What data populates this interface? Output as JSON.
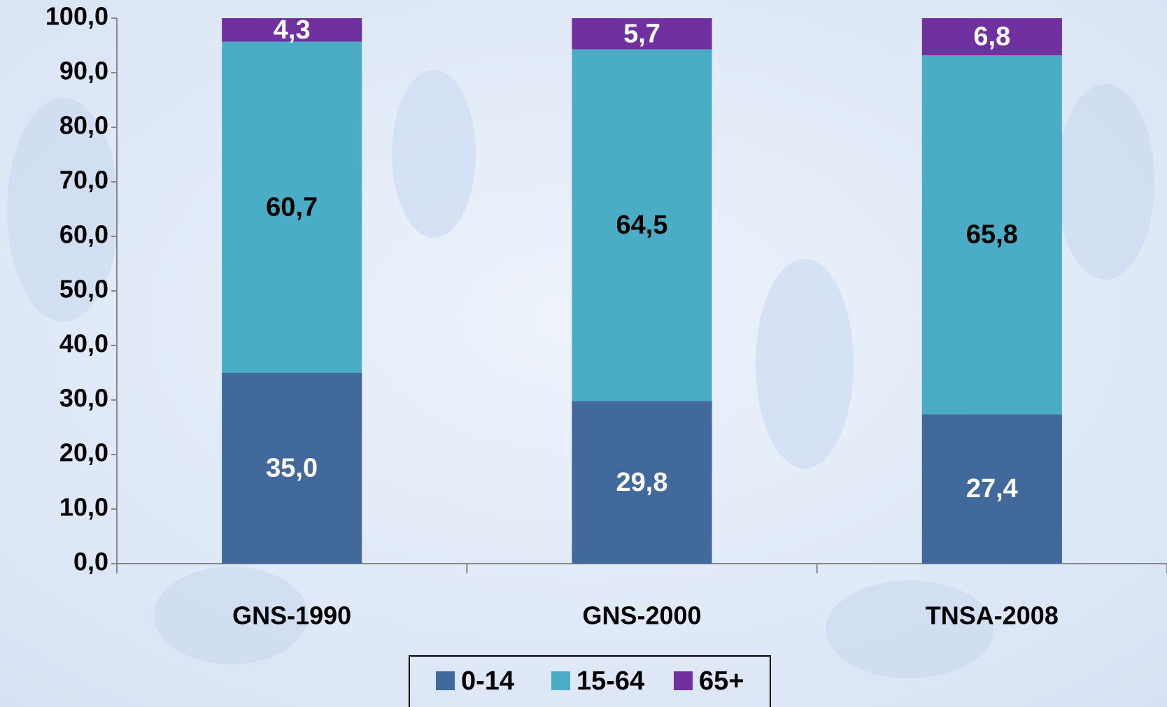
{
  "chart_data": {
    "type": "stacked_bar",
    "categories": [
      "GNS-1990",
      "GNS-2000",
      "TNSA-2008"
    ],
    "series": [
      {
        "name": "0-14",
        "color": "#41699c",
        "values": [
          35.0,
          29.8,
          27.4
        ],
        "value_labels": [
          "35,0",
          "29,8",
          "27,4"
        ]
      },
      {
        "name": "15-64",
        "color": "#4bacc6",
        "values": [
          60.7,
          64.5,
          65.8
        ],
        "value_labels": [
          "60,7",
          "64,5",
          "65,8"
        ]
      },
      {
        "name": "65+",
        "color": "#7030a0",
        "values": [
          4.3,
          5.7,
          6.8
        ],
        "value_labels": [
          "4,3",
          "5,7",
          "6,8"
        ]
      }
    ],
    "ylim": [
      0,
      100
    ],
    "yticks": [
      {
        "value": 0,
        "label": "0,0"
      },
      {
        "value": 10,
        "label": "10,0"
      },
      {
        "value": 20,
        "label": "20,0"
      },
      {
        "value": 30,
        "label": "30,0"
      },
      {
        "value": 40,
        "label": "40,0"
      },
      {
        "value": 50,
        "label": "50,0"
      },
      {
        "value": 60,
        "label": "60,0"
      },
      {
        "value": 70,
        "label": "70,0"
      },
      {
        "value": 80,
        "label": "80,0"
      },
      {
        "value": 90,
        "label": "90,0"
      },
      {
        "value": 100,
        "label": "100,0"
      }
    ],
    "grid": false,
    "legend": "bottom"
  }
}
